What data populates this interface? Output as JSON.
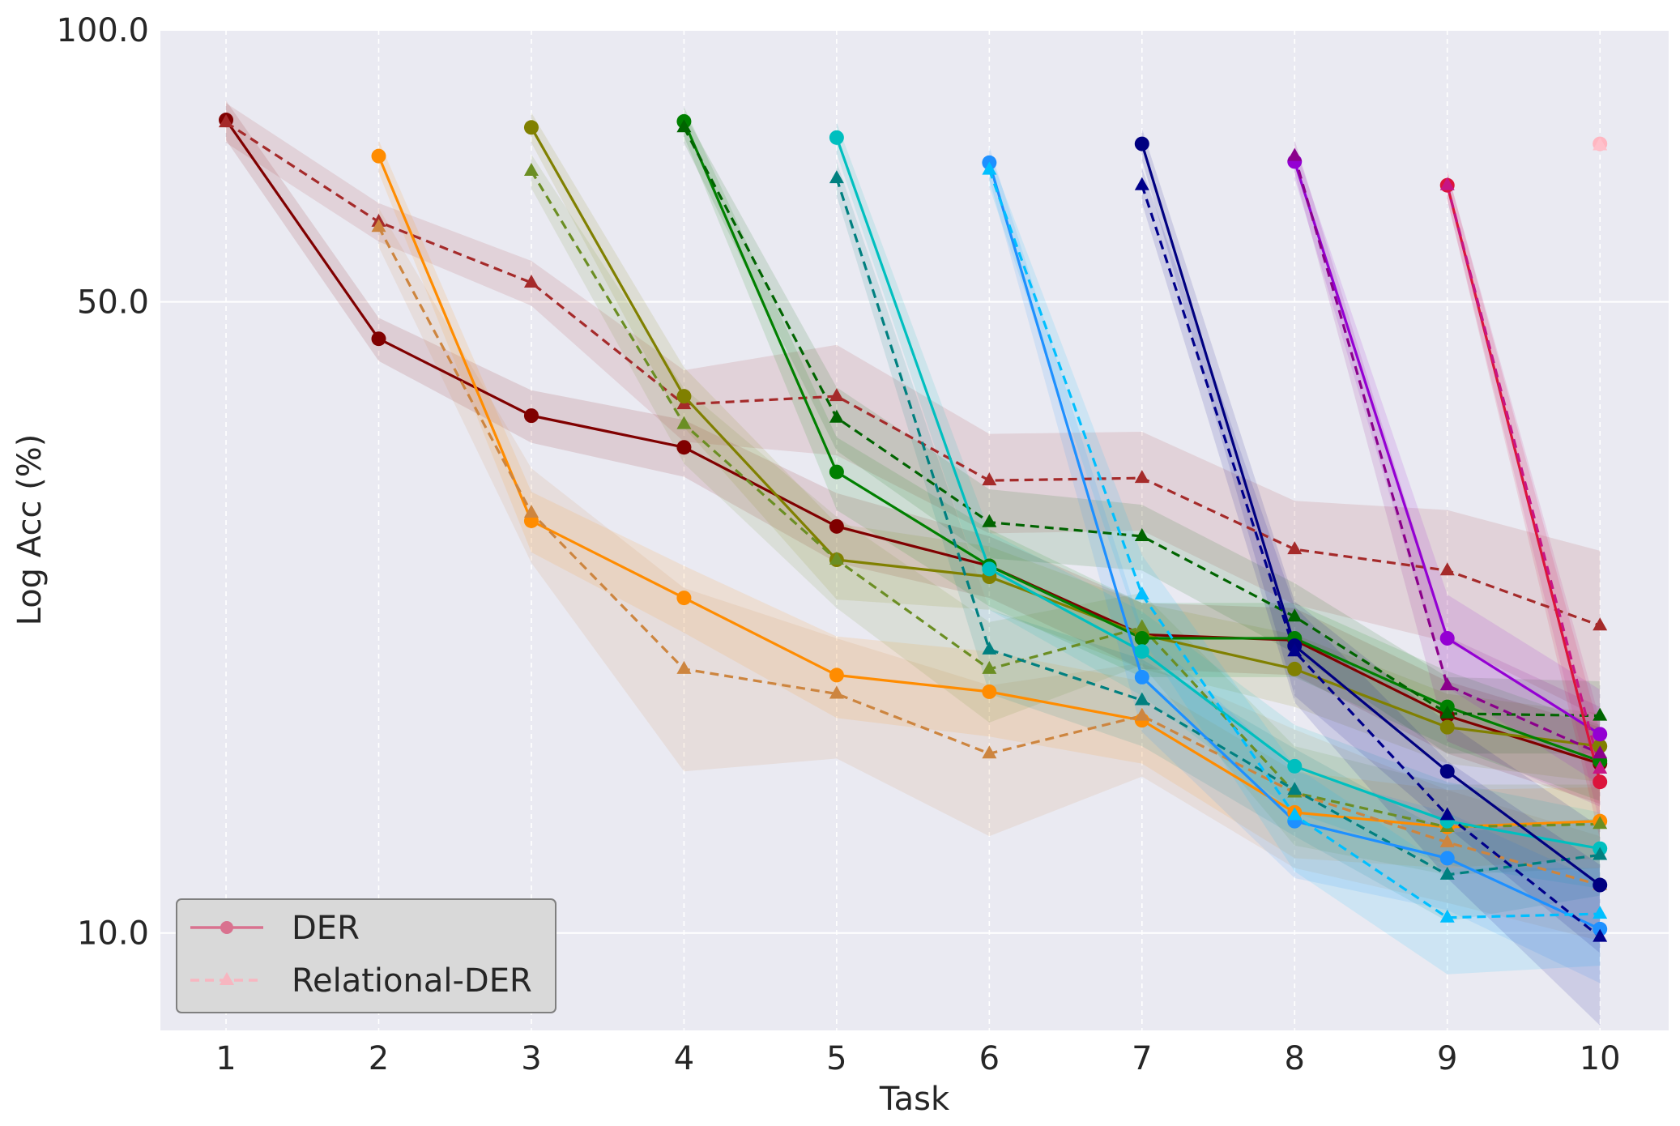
{
  "chart_data": {
    "type": "line",
    "title": "",
    "xlabel": "Task",
    "ylabel": "Log Acc (%)",
    "yscale": "log",
    "ylim": [
      7.8,
      100
    ],
    "xlim": [
      0.57,
      10.45
    ],
    "x_ticks": [
      1,
      2,
      3,
      4,
      5,
      6,
      7,
      8,
      9,
      10
    ],
    "x_tick_labels": [
      "1",
      "2",
      "3",
      "4",
      "5",
      "6",
      "7",
      "8",
      "9",
      "10"
    ],
    "y_ticks": [
      10,
      50,
      100
    ],
    "y_tick_labels": [
      "10.0",
      "50.0",
      "100.0"
    ],
    "grid": true,
    "legend_position": "lower-left",
    "legend": [
      {
        "label": "DER",
        "style": "solid",
        "marker": "circle",
        "color": "#d9728f"
      },
      {
        "label": "Relational-DER",
        "style": "dashed",
        "marker": "triangle",
        "color": "#f7b6c0"
      }
    ],
    "series": [
      {
        "name": "DER task 1",
        "method": "DER",
        "color": "#800000",
        "x": [
          1,
          2,
          3,
          4,
          5,
          6,
          7,
          8,
          9,
          10
        ],
        "values": [
          79.5,
          45.5,
          37.4,
          34.5,
          28.2,
          25.5,
          21.4,
          21.1,
          17.4,
          15.4
        ],
        "band": [
          4,
          2.5,
          2.5,
          2.5,
          2.5,
          2,
          1.8,
          1.8,
          1.6,
          1.5
        ]
      },
      {
        "name": "Relational-DER task 1",
        "method": "Relational-DER",
        "color": "#a52a2a",
        "x": [
          1,
          2,
          3,
          4,
          5,
          6,
          7,
          8,
          9,
          10
        ],
        "values": [
          79,
          61.3,
          52.5,
          38.5,
          39.3,
          31.7,
          31.9,
          26.6,
          25.2,
          21.9
        ],
        "band": [
          4,
          3,
          3,
          3.5,
          5.5,
          4,
          4,
          3.5,
          4.2,
          4.6
        ]
      },
      {
        "name": "DER task 2",
        "method": "DER",
        "color": "#ff8c00",
        "x": [
          2,
          3,
          4,
          5,
          6,
          7,
          8,
          9,
          10
        ],
        "values": [
          72.5,
          28.6,
          23.5,
          19.3,
          18.5,
          17.2,
          13.6,
          13.1,
          13.3
        ],
        "band": [
          3,
          2.2,
          2,
          2,
          2,
          1.8,
          1.5,
          1.3,
          1.2
        ]
      },
      {
        "name": "Relational-DER task 2",
        "method": "Relational-DER",
        "color": "#cd853f",
        "x": [
          2,
          3,
          4,
          5,
          6,
          7,
          8,
          9,
          10
        ],
        "values": [
          60.5,
          29.2,
          19.6,
          18.4,
          15.8,
          17.4,
          14.3,
          12.6,
          11.3
        ],
        "band": [
          3,
          3.5,
          4.5,
          2.8,
          3,
          2.5,
          2.5,
          1.8,
          1.5
        ]
      },
      {
        "name": "DER task 3",
        "method": "DER",
        "color": "#808000",
        "x": [
          3,
          4,
          5,
          6,
          7,
          8,
          9,
          10
        ],
        "values": [
          78,
          39.3,
          25.9,
          24.8,
          21.4,
          19.6,
          16.9,
          16.1
        ],
        "band": [
          3,
          3,
          2.5,
          2,
          1.8,
          1.8,
          1.5,
          1.4
        ]
      },
      {
        "name": "Relational-DER task 3",
        "method": "Relational-DER",
        "color": "#6b8e23",
        "x": [
          3,
          4,
          5,
          6,
          7,
          8,
          9,
          10
        ],
        "values": [
          69.8,
          36.6,
          25.9,
          19.6,
          21.8,
          14.3,
          13.1,
          13.2
        ],
        "band": [
          3,
          3.5,
          3,
          2.5,
          2,
          1.8,
          1.5,
          1.4
        ]
      },
      {
        "name": "DER task 4",
        "method": "DER",
        "color": "#008000",
        "x": [
          4,
          5,
          6,
          7,
          8,
          9,
          10
        ],
        "values": [
          79.2,
          32.4,
          25.5,
          21.2,
          21.2,
          17.8,
          15.5
        ],
        "band": [
          3,
          3,
          2.5,
          2,
          2,
          1.7,
          1.5
        ]
      },
      {
        "name": "Relational-DER task 4",
        "method": "Relational-DER",
        "color": "#006400",
        "x": [
          4,
          5,
          6,
          7,
          8,
          9,
          10
        ],
        "values": [
          78,
          37.2,
          28.5,
          27.5,
          22.4,
          17.5,
          17.4
        ],
        "band": [
          3,
          3,
          2.5,
          2.3,
          2,
          1.7,
          1.6
        ]
      },
      {
        "name": "DER task 5",
        "method": "DER",
        "color": "#00bfbf",
        "x": [
          5,
          6,
          7,
          8,
          9,
          10
        ],
        "values": [
          76,
          25.3,
          20.5,
          15.3,
          13.3,
          12.4
        ],
        "band": [
          3,
          2.5,
          2.2,
          1.7,
          1.4,
          1.2
        ]
      },
      {
        "name": "Relational-DER task 5",
        "method": "Relational-DER",
        "color": "#008080",
        "x": [
          5,
          6,
          7,
          8,
          9,
          10
        ],
        "values": [
          68.5,
          20.6,
          18.1,
          14.4,
          11.6,
          12.2
        ],
        "band": [
          3,
          2.2,
          2,
          1.6,
          1.3,
          1.2
        ]
      },
      {
        "name": "DER task 6",
        "method": "DER",
        "color": "#1e90ff",
        "x": [
          6,
          7,
          8,
          9,
          10
        ],
        "values": [
          71.3,
          19.2,
          13.3,
          12.1,
          10.1
        ],
        "band": [
          3,
          2.5,
          1.8,
          1.5,
          1.3
        ]
      },
      {
        "name": "Relational-DER task 6",
        "method": "Relational-DER",
        "color": "#00bfff",
        "x": [
          6,
          7,
          8,
          9,
          10
        ],
        "values": [
          70,
          23.7,
          13.5,
          10.4,
          10.5
        ],
        "band": [
          3,
          2.5,
          1.8,
          1.4,
          1.3
        ]
      },
      {
        "name": "DER task 7",
        "method": "DER",
        "color": "#000080",
        "x": [
          7,
          8,
          9,
          10
        ],
        "values": [
          74.8,
          20.8,
          15.1,
          11.3
        ],
        "band": [
          3,
          2.5,
          2,
          1.8
        ]
      },
      {
        "name": "Relational-DER task 7",
        "method": "Relational-DER",
        "color": "#00008b",
        "x": [
          7,
          8,
          9,
          10
        ],
        "values": [
          67.3,
          20.5,
          13.5,
          9.9
        ],
        "band": [
          3,
          2.5,
          2,
          2
        ]
      },
      {
        "name": "DER task 8",
        "method": "DER",
        "color": "#9400d3",
        "x": [
          8,
          9,
          10
        ],
        "values": [
          71.5,
          21.2,
          16.6
        ],
        "band": [
          3,
          2.5,
          2
        ]
      },
      {
        "name": "Relational-DER task 8",
        "method": "Relational-DER",
        "color": "#8b008b",
        "x": [
          8,
          9,
          10
        ],
        "values": [
          72.5,
          18.8,
          15.8
        ],
        "band": [
          3,
          2.5,
          2
        ]
      },
      {
        "name": "DER task 9",
        "method": "DER",
        "color": "#dc143c",
        "x": [
          9,
          10
        ],
        "values": [
          67.3,
          14.7
        ],
        "band": [
          2.5,
          2
        ]
      },
      {
        "name": "Relational-DER task 9",
        "method": "Relational-DER",
        "color": "#c71585",
        "x": [
          9,
          10
        ],
        "values": [
          67.3,
          15.2
        ],
        "band": [
          2.5,
          2
        ]
      },
      {
        "name": "DER task 10",
        "method": "DER",
        "color": "#ffb6c1",
        "x": [
          10
        ],
        "values": [
          74.8
        ],
        "band": [
          1.5
        ]
      },
      {
        "name": "Relational-DER task 10",
        "method": "Relational-DER",
        "color": "#ffc0cb",
        "x": [
          10
        ],
        "values": [
          74.5
        ],
        "band": [
          1.5
        ]
      }
    ]
  }
}
